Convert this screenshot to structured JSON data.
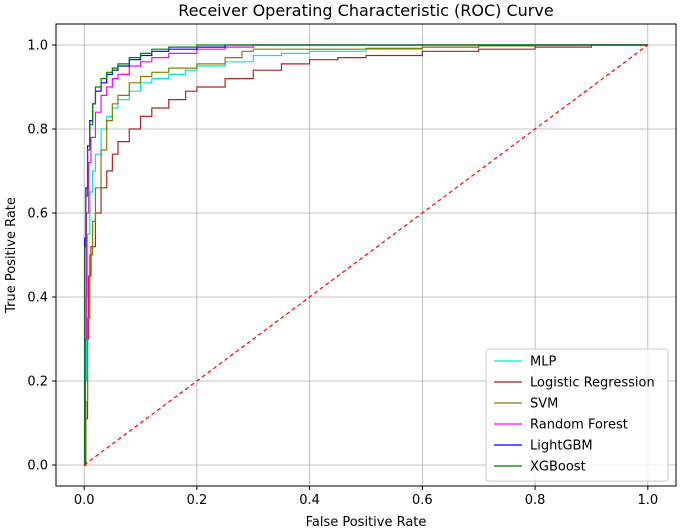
{
  "chart_data": {
    "type": "line",
    "title": "Receiver Operating Characteristic (ROC) Curve",
    "xlabel": "False Positive Rate",
    "ylabel": "True Positive Rate",
    "xlim": [
      -0.05,
      1.05
    ],
    "ylim": [
      -0.05,
      1.05
    ],
    "xticks": [
      "0.0",
      "0.2",
      "0.4",
      "0.6",
      "0.8",
      "1.0"
    ],
    "yticks": [
      "0.0",
      "0.2",
      "0.4",
      "0.6",
      "0.8",
      "1.0"
    ],
    "grid": true,
    "legend_position": "lower-right",
    "series": [
      {
        "name": "MLP",
        "color": "#00e5e5",
        "x": [
          0,
          0.002,
          0.004,
          0.006,
          0.01,
          0.015,
          0.02,
          0.03,
          0.04,
          0.05,
          0.06,
          0.08,
          0.1,
          0.12,
          0.15,
          0.18,
          0.2,
          0.25,
          0.3,
          0.35,
          0.4,
          0.5,
          0.6,
          0.7,
          0.8,
          1.0
        ],
        "y": [
          0,
          0.2,
          0.4,
          0.55,
          0.65,
          0.7,
          0.74,
          0.8,
          0.83,
          0.85,
          0.87,
          0.89,
          0.91,
          0.92,
          0.93,
          0.94,
          0.95,
          0.96,
          0.975,
          0.98,
          0.985,
          0.99,
          0.995,
          1.0,
          1.0,
          1.0
        ]
      },
      {
        "name": "Logistic Regression",
        "color": "#b22222",
        "x": [
          0,
          0.003,
          0.006,
          0.008,
          0.012,
          0.02,
          0.03,
          0.04,
          0.05,
          0.06,
          0.08,
          0.1,
          0.12,
          0.15,
          0.18,
          0.2,
          0.25,
          0.3,
          0.35,
          0.4,
          0.45,
          0.5,
          0.6,
          0.7,
          0.8,
          0.9,
          1.0
        ],
        "y": [
          0,
          0.11,
          0.3,
          0.45,
          0.52,
          0.6,
          0.66,
          0.7,
          0.74,
          0.77,
          0.8,
          0.83,
          0.85,
          0.87,
          0.89,
          0.9,
          0.92,
          0.94,
          0.955,
          0.965,
          0.97,
          0.975,
          0.985,
          0.99,
          0.995,
          1.0,
          1.0
        ]
      },
      {
        "name": "SVM",
        "color": "#808000",
        "x": [
          0,
          0.003,
          0.006,
          0.01,
          0.015,
          0.02,
          0.03,
          0.04,
          0.05,
          0.06,
          0.08,
          0.1,
          0.12,
          0.15,
          0.2,
          0.25,
          0.28,
          0.3,
          0.4,
          0.5,
          0.6,
          0.7,
          0.8,
          0.85,
          1.0
        ],
        "y": [
          0,
          0.15,
          0.35,
          0.5,
          0.58,
          0.66,
          0.75,
          0.82,
          0.86,
          0.88,
          0.91,
          0.925,
          0.935,
          0.945,
          0.955,
          0.97,
          0.985,
          0.99,
          0.99,
          0.992,
          0.995,
          0.998,
          1.0,
          1.0,
          1.0
        ]
      },
      {
        "name": "Random Forest",
        "color": "#ff00ff",
        "x": [
          0,
          0.002,
          0.004,
          0.008,
          0.012,
          0.02,
          0.03,
          0.04,
          0.05,
          0.06,
          0.08,
          0.1,
          0.12,
          0.15,
          0.2,
          0.25,
          0.3,
          0.4,
          0.5,
          1.0
        ],
        "y": [
          0,
          0.3,
          0.6,
          0.72,
          0.78,
          0.84,
          0.88,
          0.9,
          0.92,
          0.93,
          0.95,
          0.96,
          0.97,
          0.98,
          0.99,
          0.995,
          1.0,
          1.0,
          1.0,
          1.0
        ]
      },
      {
        "name": "LightGBM",
        "color": "#0000ff",
        "x": [
          0,
          0.001,
          0.003,
          0.006,
          0.01,
          0.015,
          0.02,
          0.03,
          0.04,
          0.05,
          0.06,
          0.08,
          0.1,
          0.12,
          0.15,
          0.2,
          0.25,
          0.3,
          1.0
        ],
        "y": [
          0,
          0.54,
          0.66,
          0.76,
          0.82,
          0.86,
          0.89,
          0.91,
          0.93,
          0.94,
          0.95,
          0.965,
          0.975,
          0.985,
          0.99,
          0.995,
          1.0,
          1.0,
          1.0
        ]
      },
      {
        "name": "XGBoost",
        "color": "#008000",
        "x": [
          0,
          0.001,
          0.003,
          0.006,
          0.01,
          0.015,
          0.02,
          0.03,
          0.04,
          0.05,
          0.06,
          0.08,
          0.1,
          0.12,
          0.15,
          0.2,
          0.25,
          0.3,
          1.0
        ],
        "y": [
          0,
          0.52,
          0.64,
          0.75,
          0.81,
          0.86,
          0.9,
          0.92,
          0.935,
          0.945,
          0.955,
          0.97,
          0.98,
          0.99,
          0.995,
          1.0,
          1.0,
          1.0,
          1.0
        ]
      },
      {
        "name": "",
        "color": "#ff0000",
        "dashed": true,
        "x": [
          0,
          1
        ],
        "y": [
          0,
          1
        ]
      }
    ]
  }
}
